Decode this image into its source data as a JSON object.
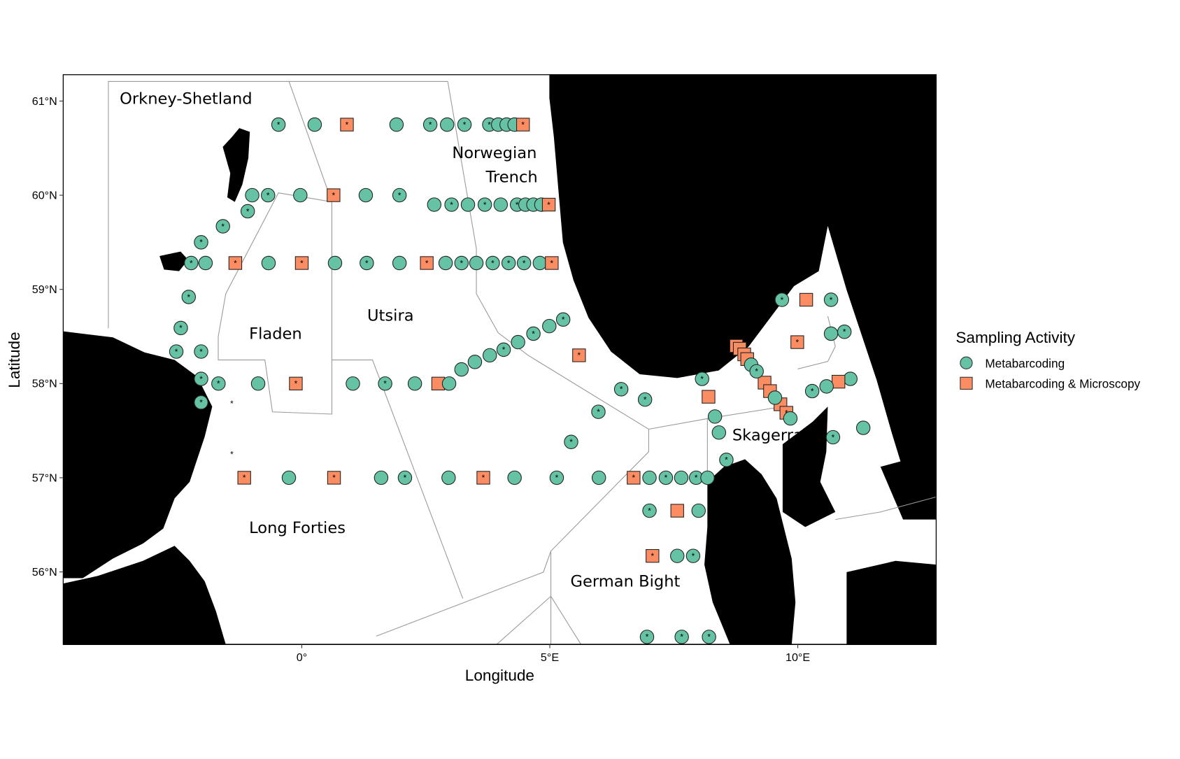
{
  "chart_data": {
    "type": "scatter",
    "xlabel": "Longitude",
    "ylabel": "Latitude",
    "xlim": [
      -4.81,
      12.79
    ],
    "ylim": [
      55.23,
      61.28
    ],
    "x_ticks": [
      {
        "value": 0,
        "label": "0°"
      },
      {
        "value": 5,
        "label": "5°E"
      },
      {
        "value": 10,
        "label": "10°E"
      }
    ],
    "y_ticks": [
      {
        "value": 56,
        "label": "56°N"
      },
      {
        "value": 57,
        "label": "57°N"
      },
      {
        "value": 58,
        "label": "58°N"
      },
      {
        "value": 59,
        "label": "59°N"
      },
      {
        "value": 60,
        "label": "60°N"
      },
      {
        "value": 61,
        "label": "61°N"
      }
    ],
    "grid": false,
    "land_color": "#bebebe",
    "legend": {
      "title": "Sampling Activity",
      "placement": "right",
      "entries": [
        {
          "label": "Metabarcoding",
          "shape": "circle",
          "color": "#66c2a5"
        },
        {
          "label": "Metabarcoding & Microscopy",
          "shape": "square",
          "color": "#fc8d62"
        }
      ]
    },
    "regions": [
      "Orkney-Shetland",
      "Norwegian Trench",
      "Fladen",
      "Utsira",
      "Long Forties",
      "Skagerrak",
      "German Bight"
    ],
    "asterisk_only_points": [
      [
        -1.41,
        57.79
      ],
      [
        -1.41,
        57.25
      ]
    ],
    "stations": [
      [
        -0.47,
        60.75,
        "M",
        1
      ],
      [
        0.26,
        60.75,
        "M",
        0
      ],
      [
        0.91,
        60.75,
        "S",
        1
      ],
      [
        1.91,
        60.75,
        "M",
        0
      ],
      [
        2.59,
        60.75,
        "M",
        1
      ],
      [
        2.93,
        60.75,
        "M",
        0
      ],
      [
        3.28,
        60.75,
        "M",
        1
      ],
      [
        3.78,
        60.75,
        "M",
        1
      ],
      [
        3.96,
        60.75,
        "M",
        0
      ],
      [
        4.13,
        60.75,
        "M",
        0
      ],
      [
        4.29,
        60.75,
        "M",
        0
      ],
      [
        4.46,
        60.75,
        "S",
        1
      ],
      [
        -1.0,
        60.0,
        "M",
        0
      ],
      [
        -0.68,
        60.0,
        "M",
        1
      ],
      [
        -0.03,
        60.0,
        "M",
        0
      ],
      [
        0.64,
        60.0,
        "S",
        1
      ],
      [
        1.29,
        60.0,
        "M",
        0
      ],
      [
        1.97,
        60.0,
        "M",
        1
      ],
      [
        2.67,
        59.9,
        "M",
        0
      ],
      [
        3.02,
        59.9,
        "M",
        1
      ],
      [
        3.35,
        59.9,
        "M",
        0
      ],
      [
        3.69,
        59.9,
        "M",
        1
      ],
      [
        4.01,
        59.9,
        "M",
        0
      ],
      [
        4.34,
        59.9,
        "M",
        1
      ],
      [
        4.51,
        59.9,
        "M",
        0
      ],
      [
        4.67,
        59.9,
        "M",
        0
      ],
      [
        4.83,
        59.9,
        "M",
        0
      ],
      [
        4.98,
        59.9,
        "S",
        1
      ],
      [
        -1.09,
        59.83,
        "M",
        1
      ],
      [
        -1.59,
        59.67,
        "M",
        1
      ],
      [
        -2.03,
        59.5,
        "M",
        1
      ],
      [
        -2.23,
        59.28,
        "M",
        1
      ],
      [
        -1.94,
        59.28,
        "M",
        0
      ],
      [
        -1.34,
        59.28,
        "S",
        1
      ],
      [
        -0.67,
        59.28,
        "M",
        0
      ],
      [
        0.0,
        59.28,
        "S",
        1
      ],
      [
        0.67,
        59.28,
        "M",
        0
      ],
      [
        1.31,
        59.28,
        "M",
        1
      ],
      [
        1.97,
        59.28,
        "M",
        0
      ],
      [
        2.52,
        59.28,
        "S",
        1
      ],
      [
        2.9,
        59.28,
        "M",
        0
      ],
      [
        3.22,
        59.28,
        "M",
        1
      ],
      [
        3.52,
        59.28,
        "M",
        0
      ],
      [
        3.85,
        59.28,
        "M",
        1
      ],
      [
        4.17,
        59.28,
        "M",
        1
      ],
      [
        4.48,
        59.28,
        "M",
        1
      ],
      [
        4.8,
        59.28,
        "M",
        0
      ],
      [
        5.04,
        59.28,
        "S",
        1
      ],
      [
        -2.28,
        58.92,
        "M",
        1
      ],
      [
        -2.44,
        58.59,
        "M",
        1
      ],
      [
        -2.53,
        58.34,
        "M",
        1
      ],
      [
        -2.03,
        58.34,
        "M",
        1
      ],
      [
        -2.03,
        58.05,
        "M",
        1
      ],
      [
        -1.68,
        58.0,
        "M",
        1
      ],
      [
        -0.88,
        58.0,
        "M",
        0
      ],
      [
        -0.12,
        58.0,
        "S",
        1
      ],
      [
        1.03,
        58.0,
        "M",
        0
      ],
      [
        1.68,
        58.0,
        "M",
        1
      ],
      [
        2.28,
        58.0,
        "M",
        0
      ],
      [
        2.75,
        58.0,
        "S",
        0
      ],
      [
        2.97,
        58.0,
        "M",
        0
      ],
      [
        -2.03,
        57.8,
        "M",
        1
      ],
      [
        3.22,
        58.15,
        "M",
        0
      ],
      [
        3.49,
        58.23,
        "M",
        0
      ],
      [
        3.79,
        58.3,
        "M",
        0
      ],
      [
        4.07,
        58.36,
        "M",
        1
      ],
      [
        4.36,
        58.44,
        "M",
        0
      ],
      [
        4.67,
        58.53,
        "M",
        1
      ],
      [
        4.99,
        58.61,
        "M",
        0
      ],
      [
        5.27,
        58.68,
        "M",
        1
      ],
      [
        5.59,
        58.3,
        "S",
        1
      ],
      [
        5.98,
        57.7,
        "M",
        1
      ],
      [
        6.44,
        57.94,
        "M",
        1
      ],
      [
        6.92,
        57.83,
        "M",
        1
      ],
      [
        5.43,
        57.38,
        "M",
        1
      ],
      [
        8.07,
        58.05,
        "M",
        1
      ],
      [
        8.33,
        57.65,
        "M",
        0
      ],
      [
        8.41,
        57.48,
        "M",
        0
      ],
      [
        8.56,
        57.19,
        "M",
        1
      ],
      [
        8.2,
        57.86,
        "S",
        0
      ],
      [
        8.76,
        58.4,
        "S",
        1
      ],
      [
        8.83,
        58.37,
        "S",
        0
      ],
      [
        8.92,
        58.31,
        "S",
        0
      ],
      [
        8.98,
        58.26,
        "S",
        0
      ],
      [
        9.33,
        58.01,
        "S",
        0
      ],
      [
        9.44,
        57.92,
        "S",
        0
      ],
      [
        9.65,
        57.78,
        "S",
        0
      ],
      [
        9.77,
        57.69,
        "S",
        1
      ],
      [
        9.06,
        58.2,
        "M",
        0
      ],
      [
        9.17,
        58.13,
        "M",
        1
      ],
      [
        9.54,
        57.85,
        "M",
        0
      ],
      [
        9.85,
        57.63,
        "M",
        0
      ],
      [
        9.68,
        58.89,
        "M",
        1
      ],
      [
        10.17,
        58.89,
        "S",
        0
      ],
      [
        10.67,
        58.89,
        "M",
        1
      ],
      [
        9.99,
        58.44,
        "S",
        1
      ],
      [
        10.67,
        58.53,
        "M",
        0
      ],
      [
        10.94,
        58.55,
        "M",
        1
      ],
      [
        11.06,
        58.05,
        "M",
        0
      ],
      [
        10.82,
        58.02,
        "S",
        0
      ],
      [
        10.58,
        57.97,
        "M",
        0
      ],
      [
        10.29,
        57.92,
        "M",
        1
      ],
      [
        10.71,
        57.43,
        "M",
        1
      ],
      [
        11.32,
        57.53,
        "M",
        0
      ],
      [
        -1.16,
        57.0,
        "S",
        1
      ],
      [
        -0.26,
        57.0,
        "M",
        0
      ],
      [
        0.65,
        57.0,
        "S",
        1
      ],
      [
        1.6,
        57.0,
        "M",
        0
      ],
      [
        2.08,
        57.0,
        "M",
        1
      ],
      [
        2.96,
        57.0,
        "M",
        0
      ],
      [
        3.66,
        57.0,
        "S",
        1
      ],
      [
        4.29,
        57.0,
        "M",
        0
      ],
      [
        5.14,
        57.0,
        "M",
        1
      ],
      [
        5.99,
        57.0,
        "M",
        0
      ],
      [
        6.69,
        57.0,
        "S",
        1
      ],
      [
        7.01,
        57.0,
        "M",
        0
      ],
      [
        7.34,
        57.0,
        "M",
        1
      ],
      [
        7.65,
        57.0,
        "M",
        0
      ],
      [
        7.95,
        57.0,
        "M",
        1
      ],
      [
        8.18,
        57.0,
        "M",
        0
      ],
      [
        7.01,
        56.65,
        "M",
        1
      ],
      [
        7.57,
        56.65,
        "S",
        0
      ],
      [
        8.0,
        56.65,
        "M",
        0
      ],
      [
        7.07,
        56.17,
        "S",
        1
      ],
      [
        7.57,
        56.17,
        "M",
        0
      ],
      [
        7.89,
        56.17,
        "M",
        1
      ],
      [
        6.96,
        55.31,
        "M",
        1
      ],
      [
        7.66,
        55.31,
        "M",
        1
      ],
      [
        8.21,
        55.31,
        "M",
        1
      ]
    ]
  }
}
